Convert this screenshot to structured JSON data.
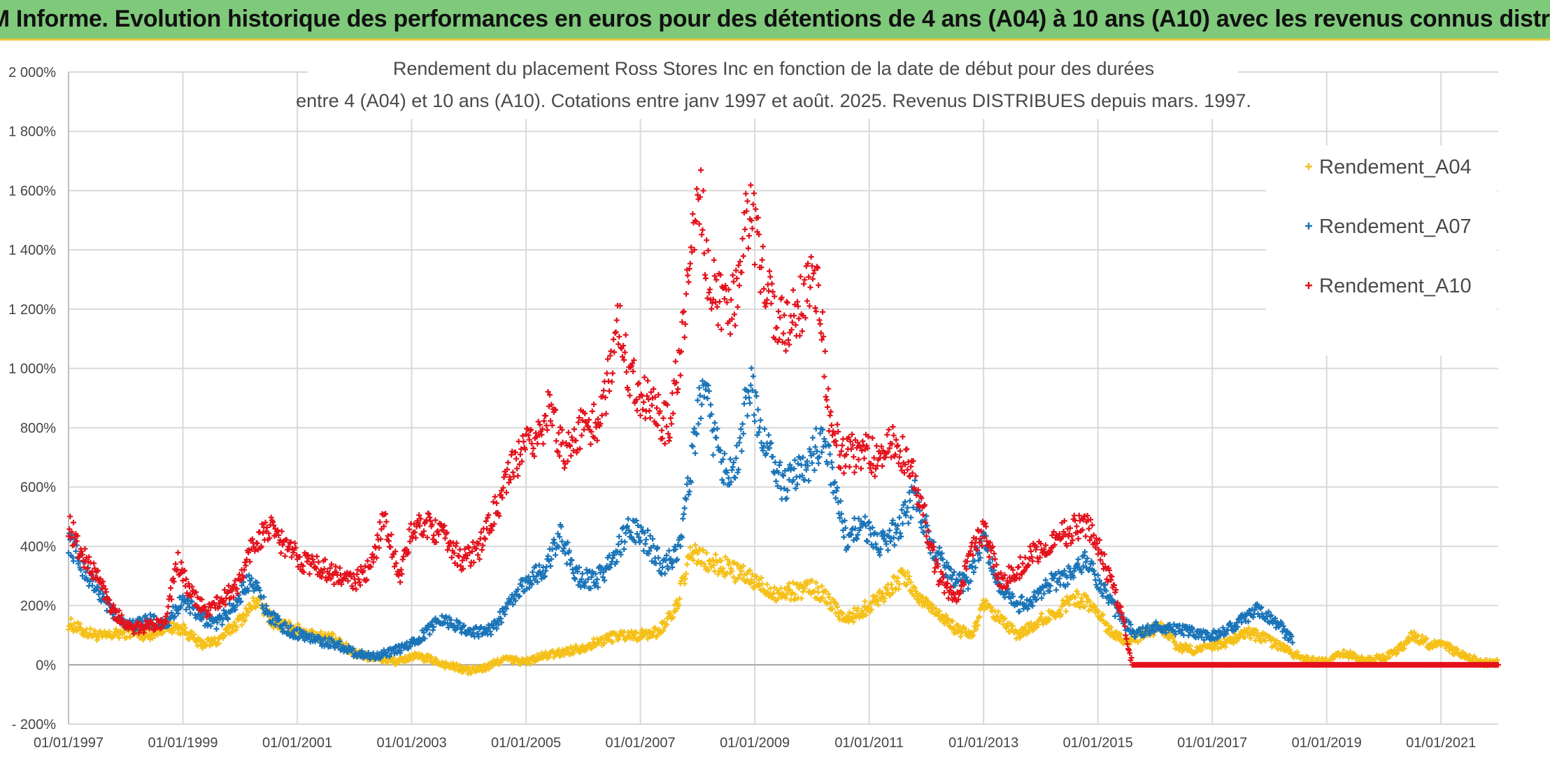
{
  "banner": {
    "text": "ADAM Informe. Evolution historique des performances en euros pour des détentions de 4 ans (A04) à 10 ans (A10) avec les revenus connus distribués",
    "background": "#7fc97b"
  },
  "chart_data": {
    "type": "scatter",
    "title_line1": "Rendement du placement Ross Stores Inc en fonction de la date de début pour des durées",
    "title_line2": "entre 4 (A04) et 10 ans (A10). Cotations entre janv 1997 et août. 2025. Revenus DISTRIBUES depuis mars. 1997.",
    "xlim": [
      1997.0,
      2022.0
    ],
    "ylim": [
      -200,
      2000
    ],
    "y_ticks": [
      -200,
      0,
      200,
      400,
      600,
      800,
      1000,
      1200,
      1400,
      1600,
      1800,
      2000
    ],
    "y_tick_labels": [
      "- 200%",
      "0%",
      "200%",
      "400%",
      "600%",
      "800%",
      "1 000%",
      "1 200%",
      "1 400%",
      "1 600%",
      "1 800%",
      "2 000%"
    ],
    "x_ticks": [
      1997,
      1999,
      2001,
      2003,
      2005,
      2007,
      2009,
      2011,
      2013,
      2015,
      2017,
      2019,
      2021
    ],
    "x_tick_labels": [
      "01/01/1997",
      "01/01/1999",
      "01/01/2001",
      "01/01/2003",
      "01/01/2005",
      "01/01/2007",
      "01/01/2009",
      "01/01/2011",
      "01/01/2013",
      "01/01/2015",
      "01/01/2017",
      "01/01/2019",
      "01/01/2021"
    ],
    "grid": true,
    "legend_position": "top-right",
    "marker": "+",
    "series": [
      {
        "name": "Rendement_A04",
        "color": "#f5c018",
        "points": [
          [
            1997.0,
            140
          ],
          [
            1997.3,
            110
          ],
          [
            1997.6,
            95
          ],
          [
            1998.0,
            110
          ],
          [
            1998.4,
            100
          ],
          [
            1998.7,
            130
          ],
          [
            1999.0,
            120
          ],
          [
            1999.3,
            70
          ],
          [
            1999.6,
            80
          ],
          [
            2000.0,
            150
          ],
          [
            2000.3,
            220
          ],
          [
            2000.6,
            140
          ],
          [
            2001.0,
            120
          ],
          [
            2001.3,
            100
          ],
          [
            2001.6,
            90
          ],
          [
            2002.0,
            40
          ],
          [
            2002.4,
            20
          ],
          [
            2002.8,
            10
          ],
          [
            2003.0,
            30
          ],
          [
            2003.3,
            20
          ],
          [
            2003.6,
            0
          ],
          [
            2004.0,
            -20
          ],
          [
            2004.3,
            -10
          ],
          [
            2004.6,
            20
          ],
          [
            2005.0,
            10
          ],
          [
            2005.3,
            30
          ],
          [
            2005.6,
            40
          ],
          [
            2006.0,
            60
          ],
          [
            2006.3,
            80
          ],
          [
            2006.6,
            100
          ],
          [
            2007.0,
            100
          ],
          [
            2007.3,
            110
          ],
          [
            2007.6,
            180
          ],
          [
            2007.9,
            380
          ],
          [
            2008.2,
            340
          ],
          [
            2008.5,
            330
          ],
          [
            2008.8,
            300
          ],
          [
            2009.1,
            270
          ],
          [
            2009.4,
            240
          ],
          [
            2009.7,
            250
          ],
          [
            2010.0,
            260
          ],
          [
            2010.3,
            220
          ],
          [
            2010.6,
            150
          ],
          [
            2011.0,
            200
          ],
          [
            2011.3,
            250
          ],
          [
            2011.6,
            300
          ],
          [
            2011.9,
            220
          ],
          [
            2012.2,
            180
          ],
          [
            2012.5,
            120
          ],
          [
            2012.8,
            100
          ],
          [
            2013.0,
            200
          ],
          [
            2013.3,
            150
          ],
          [
            2013.6,
            100
          ],
          [
            2014.0,
            150
          ],
          [
            2014.3,
            180
          ],
          [
            2014.6,
            230
          ],
          [
            2014.9,
            200
          ],
          [
            2015.2,
            120
          ],
          [
            2015.5,
            80
          ],
          [
            2015.8,
            100
          ],
          [
            2016.1,
            130
          ],
          [
            2016.4,
            60
          ],
          [
            2016.7,
            50
          ],
          [
            2017.0,
            60
          ],
          [
            2017.3,
            80
          ],
          [
            2017.6,
            110
          ],
          [
            2017.9,
            90
          ],
          [
            2018.2,
            60
          ],
          [
            2018.5,
            30
          ],
          [
            2018.8,
            10
          ],
          [
            2019.0,
            10
          ],
          [
            2019.3,
            40
          ],
          [
            2019.6,
            20
          ],
          [
            2019.9,
            20
          ],
          [
            2020.2,
            40
          ],
          [
            2020.5,
            100
          ],
          [
            2020.8,
            70
          ],
          [
            2021.1,
            60
          ],
          [
            2021.4,
            30
          ],
          [
            2021.7,
            10
          ],
          [
            2022.0,
            5
          ]
        ]
      },
      {
        "name": "Rendement_A07",
        "color": "#1a74b8",
        "points": [
          [
            1997.0,
            420
          ],
          [
            1997.2,
            350
          ],
          [
            1997.5,
            250
          ],
          [
            1997.8,
            170
          ],
          [
            1998.1,
            130
          ],
          [
            1998.4,
            150
          ],
          [
            1998.7,
            140
          ],
          [
            1999.0,
            220
          ],
          [
            1999.3,
            160
          ],
          [
            1999.6,
            140
          ],
          [
            1999.9,
            200
          ],
          [
            2000.2,
            300
          ],
          [
            2000.5,
            170
          ],
          [
            2000.8,
            120
          ],
          [
            2001.1,
            100
          ],
          [
            2001.4,
            80
          ],
          [
            2001.7,
            70
          ],
          [
            2002.0,
            40
          ],
          [
            2002.3,
            30
          ],
          [
            2002.6,
            40
          ],
          [
            2002.9,
            60
          ],
          [
            2003.2,
            100
          ],
          [
            2003.5,
            160
          ],
          [
            2003.8,
            130
          ],
          [
            2004.1,
            110
          ],
          [
            2004.4,
            120
          ],
          [
            2004.7,
            200
          ],
          [
            2005.0,
            280
          ],
          [
            2005.3,
            320
          ],
          [
            2005.6,
            430
          ],
          [
            2005.9,
            300
          ],
          [
            2006.2,
            280
          ],
          [
            2006.5,
            350
          ],
          [
            2006.8,
            460
          ],
          [
            2007.1,
            420
          ],
          [
            2007.4,
            330
          ],
          [
            2007.7,
            400
          ],
          [
            2007.9,
            700
          ],
          [
            2008.1,
            950
          ],
          [
            2008.3,
            750
          ],
          [
            2008.5,
            650
          ],
          [
            2008.7,
            700
          ],
          [
            2008.9,
            950
          ],
          [
            2009.1,
            800
          ],
          [
            2009.3,
            700
          ],
          [
            2009.5,
            600
          ],
          [
            2009.8,
            650
          ],
          [
            2010.0,
            700
          ],
          [
            2010.2,
            780
          ],
          [
            2010.4,
            600
          ],
          [
            2010.6,
            420
          ],
          [
            2010.9,
            480
          ],
          [
            2011.2,
            400
          ],
          [
            2011.5,
            460
          ],
          [
            2011.8,
            570
          ],
          [
            2012.1,
            400
          ],
          [
            2012.4,
            300
          ],
          [
            2012.7,
            270
          ],
          [
            2013.0,
            420
          ],
          [
            2013.3,
            250
          ],
          [
            2013.6,
            200
          ],
          [
            2013.9,
            220
          ],
          [
            2014.2,
            280
          ],
          [
            2014.5,
            300
          ],
          [
            2014.8,
            350
          ],
          [
            2015.1,
            250
          ],
          [
            2015.4,
            150
          ],
          [
            2015.7,
            100
          ],
          [
            2016.0,
            130
          ],
          [
            2016.3,
            120
          ],
          [
            2016.6,
            110
          ],
          [
            2016.9,
            100
          ],
          [
            2017.2,
            110
          ],
          [
            2017.5,
            150
          ],
          [
            2017.8,
            190
          ],
          [
            2018.1,
            150
          ],
          [
            2018.4,
            80
          ]
        ]
      },
      {
        "name": "Rendement_A10",
        "color": "#e3121c",
        "points": [
          [
            1997.0,
            480
          ],
          [
            1997.2,
            380
          ],
          [
            1997.5,
            300
          ],
          [
            1997.8,
            180
          ],
          [
            1998.1,
            120
          ],
          [
            1998.4,
            130
          ],
          [
            1998.7,
            150
          ],
          [
            1998.9,
            350
          ],
          [
            1999.1,
            250
          ],
          [
            1999.4,
            180
          ],
          [
            1999.7,
            220
          ],
          [
            2000.0,
            280
          ],
          [
            2000.2,
            400
          ],
          [
            2000.5,
            460
          ],
          [
            2000.8,
            400
          ],
          [
            2001.1,
            350
          ],
          [
            2001.4,
            330
          ],
          [
            2001.7,
            300
          ],
          [
            2002.0,
            280
          ],
          [
            2002.3,
            330
          ],
          [
            2002.5,
            500
          ],
          [
            2002.8,
            300
          ],
          [
            2003.0,
            450
          ],
          [
            2003.3,
            480
          ],
          [
            2003.6,
            420
          ],
          [
            2003.9,
            350
          ],
          [
            2004.2,
            400
          ],
          [
            2004.5,
            540
          ],
          [
            2004.8,
            680
          ],
          [
            2005.1,
            750
          ],
          [
            2005.4,
            850
          ],
          [
            2005.7,
            720
          ],
          [
            2006.0,
            800
          ],
          [
            2006.3,
            820
          ],
          [
            2006.6,
            1150
          ],
          [
            2006.8,
            1000
          ],
          [
            2007.0,
            920
          ],
          [
            2007.3,
            850
          ],
          [
            2007.5,
            800
          ],
          [
            2007.8,
            1200
          ],
          [
            2008.0,
            1650
          ],
          [
            2008.2,
            1300
          ],
          [
            2008.5,
            1180
          ],
          [
            2008.7,
            1250
          ],
          [
            2008.9,
            1550
          ],
          [
            2009.1,
            1350
          ],
          [
            2009.3,
            1200
          ],
          [
            2009.6,
            1150
          ],
          [
            2009.9,
            1250
          ],
          [
            2010.1,
            1300
          ],
          [
            2010.3,
            850
          ],
          [
            2010.5,
            700
          ],
          [
            2010.8,
            720
          ],
          [
            2011.1,
            700
          ],
          [
            2011.4,
            750
          ],
          [
            2011.7,
            700
          ],
          [
            2011.9,
            550
          ],
          [
            2012.2,
            300
          ],
          [
            2012.5,
            220
          ],
          [
            2012.8,
            380
          ],
          [
            2013.0,
            450
          ],
          [
            2013.3,
            280
          ],
          [
            2013.6,
            320
          ],
          [
            2013.9,
            380
          ],
          [
            2014.2,
            420
          ],
          [
            2014.5,
            450
          ],
          [
            2014.8,
            480
          ],
          [
            2015.1,
            350
          ],
          [
            2015.4,
            180
          ],
          [
            2015.6,
            0
          ],
          [
            2016.0,
            0
          ],
          [
            2017.0,
            0
          ],
          [
            2018.0,
            0
          ],
          [
            2019.0,
            0
          ],
          [
            2020.0,
            0
          ],
          [
            2021.0,
            0
          ],
          [
            2022.0,
            0
          ]
        ]
      }
    ]
  }
}
